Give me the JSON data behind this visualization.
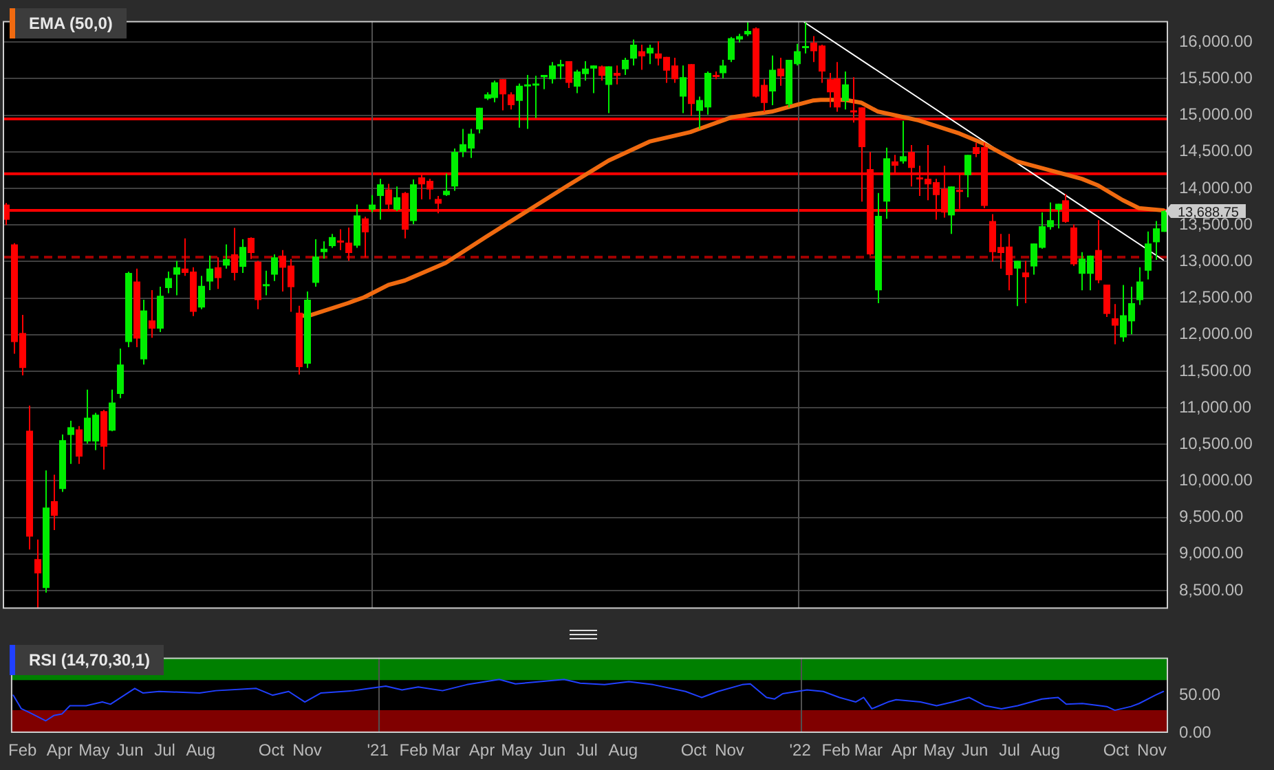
{
  "chart_data": [
    {
      "type": "candlestick",
      "series": [
        {
          "type": "candlestick",
          "x": [
            "2020-02-21",
            "2020-02-28",
            "2020-03-06",
            "2020-03-13",
            "2020-03-20",
            "2020-03-27",
            "2020-04-03",
            "2020-04-10",
            "2020-04-17",
            "2020-04-24",
            "2020-05-01",
            "2020-05-08",
            "2020-05-15",
            "2020-05-22",
            "2020-05-29",
            "2020-06-05",
            "2020-06-12",
            "2020-06-19",
            "2020-06-26",
            "2020-07-03",
            "2020-07-10",
            "2020-07-17",
            "2020-07-24",
            "2020-07-31",
            "2020-08-07",
            "2020-08-14",
            "2020-08-21",
            "2020-08-28",
            "2020-09-04",
            "2020-09-11",
            "2020-09-18",
            "2020-09-25",
            "2020-10-02",
            "2020-10-09",
            "2020-10-16",
            "2020-10-23",
            "2020-10-30",
            "2020-11-06",
            "2020-11-13",
            "2020-11-20",
            "2020-11-27",
            "2020-12-04",
            "2020-12-11",
            "2020-12-18",
            "2020-12-25",
            "2021-01-01",
            "2021-01-08",
            "2021-01-15",
            "2021-01-22",
            "2021-01-29",
            "2021-02-05",
            "2021-02-12",
            "2021-02-19",
            "2021-02-26",
            "2021-03-05",
            "2021-03-12",
            "2021-03-19",
            "2021-03-26",
            "2021-04-02",
            "2021-04-09",
            "2021-04-16",
            "2021-04-23",
            "2021-04-30",
            "2021-05-07",
            "2021-05-14",
            "2021-05-21",
            "2021-05-28",
            "2021-06-04",
            "2021-06-11",
            "2021-06-18",
            "2021-06-25",
            "2021-07-02",
            "2021-07-09",
            "2021-07-16",
            "2021-07-23",
            "2021-07-30",
            "2021-08-06",
            "2021-08-13",
            "2021-08-20",
            "2021-08-27",
            "2021-09-03",
            "2021-09-10",
            "2021-09-17",
            "2021-09-24",
            "2021-10-01",
            "2021-10-08",
            "2021-10-15",
            "2021-10-22",
            "2021-10-29",
            "2021-11-05",
            "2021-11-12",
            "2021-11-19",
            "2021-11-26",
            "2021-12-03",
            "2021-12-10",
            "2021-12-17",
            "2021-12-24",
            "2021-12-31",
            "2022-01-07",
            "2022-01-14",
            "2022-01-21",
            "2022-01-28",
            "2022-02-04",
            "2022-02-11",
            "2022-02-18",
            "2022-02-25",
            "2022-03-04",
            "2022-03-11",
            "2022-03-18",
            "2022-03-25",
            "2022-04-01",
            "2022-04-08",
            "2022-04-15",
            "2022-04-22",
            "2022-04-29",
            "2022-05-06",
            "2022-05-13",
            "2022-05-20",
            "2022-05-27",
            "2022-06-03",
            "2022-06-10",
            "2022-06-17",
            "2022-06-24",
            "2022-07-01",
            "2022-07-08",
            "2022-07-15",
            "2022-07-22",
            "2022-07-29",
            "2022-08-05",
            "2022-08-12",
            "2022-08-19",
            "2022-08-26",
            "2022-09-02",
            "2022-09-09",
            "2022-09-16",
            "2022-09-23",
            "2022-09-30",
            "2022-10-07",
            "2022-10-14",
            "2022-10-21",
            "2022-10-28",
            "2022-11-04",
            "2022-11-11"
          ],
          "ohlc": [
            [
              13778,
              13800,
              13500,
              13571
            ],
            [
              13234,
              13250,
              11739,
              11898
            ],
            [
              12022,
              12271,
              11443,
              11544
            ],
            [
              10687,
              11030,
              9062,
              9239
            ],
            [
              8931,
              9197,
              8252,
              8736
            ],
            [
              8536,
              10143,
              8471,
              9635
            ],
            [
              9723,
              10084,
              9327,
              9522
            ],
            [
              9889,
              10634,
              9848,
              10557
            ],
            [
              10628,
              10823,
              10232,
              10734
            ],
            [
              10704,
              10750,
              10232,
              10332
            ],
            [
              10539,
              11248,
              10509,
              10864
            ],
            [
              10539,
              10930,
              10421,
              10905
            ],
            [
              10953,
              10970,
              10155,
              10468
            ],
            [
              10687,
              11248,
              10680,
              11071
            ],
            [
              11189,
              11810,
              11130,
              11591
            ],
            [
              11898,
              12860,
              11827,
              12844
            ],
            [
              12726,
              12903,
              11827,
              11946
            ],
            [
              11662,
              12477,
              11591,
              12330
            ],
            [
              12194,
              12608,
              11957,
              12082
            ],
            [
              12082,
              12655,
              12034,
              12531
            ],
            [
              12637,
              12862,
              12566,
              12773
            ],
            [
              12820,
              13009,
              12537,
              12921
            ],
            [
              12903,
              13317,
              12803,
              12844
            ],
            [
              12862,
              12921,
              12253,
              12312
            ],
            [
              12371,
              12803,
              12347,
              12667
            ],
            [
              12726,
              13080,
              12608,
              12903
            ],
            [
              12921,
              13057,
              12625,
              12773
            ],
            [
              12944,
              13234,
              12903,
              13033
            ],
            [
              13098,
              13459,
              12743,
              12844
            ],
            [
              12927,
              13305,
              12844,
              13199
            ],
            [
              13323,
              13330,
              13033,
              13116
            ],
            [
              12998,
              13010,
              12347,
              12472
            ],
            [
              12667,
              12873,
              12537,
              12690
            ],
            [
              12820,
              13098,
              12732,
              13057
            ],
            [
              13080,
              13157,
              12590,
              12915
            ],
            [
              12944,
              13033,
              12312,
              12649
            ],
            [
              12300,
              12395,
              11455,
              11556
            ],
            [
              11603,
              12590,
              11544,
              12477
            ],
            [
              12708,
              13305,
              12655,
              13068
            ],
            [
              13128,
              13276,
              13039,
              13175
            ],
            [
              13210,
              13376,
              13187,
              13334
            ],
            [
              13287,
              13441,
              13157,
              13269
            ],
            [
              13258,
              13464,
              13010,
              13116
            ],
            [
              13216,
              13778,
              13187,
              13630
            ],
            [
              13589,
              13612,
              13057,
              13399
            ],
            [
              13707,
              13908,
              13672,
              13778
            ],
            [
              13896,
              14132,
              13571,
              14055
            ],
            [
              13985,
              14060,
              13710,
              13778
            ],
            [
              13707,
              14026,
              13690,
              13878
            ],
            [
              13937,
              13950,
              13317,
              13435
            ],
            [
              13553,
              14121,
              13512,
              14055
            ],
            [
              14150,
              14191,
              13849,
              14055
            ],
            [
              14103,
              14132,
              13849,
              13985
            ],
            [
              13855,
              13896,
              13660,
              13790
            ],
            [
              13908,
              14203,
              13896,
              13967
            ],
            [
              14026,
              14546,
              13967,
              14499
            ],
            [
              14499,
              14812,
              14428,
              14605
            ],
            [
              14546,
              14812,
              14416,
              14747
            ],
            [
              14806,
              15101,
              14753,
              15101
            ],
            [
              15226,
              15314,
              15208,
              15285
            ],
            [
              15237,
              15474,
              15178,
              15450
            ],
            [
              15492,
              15492,
              15066,
              15285
            ],
            [
              15285,
              15314,
              15078,
              15137
            ],
            [
              15196,
              15433,
              14830,
              15403
            ],
            [
              15403,
              15551,
              14812,
              15421
            ],
            [
              15421,
              15539,
              14960,
              15433
            ],
            [
              15521,
              15551,
              15356,
              15551
            ],
            [
              15492,
              15728,
              15433,
              15681
            ],
            [
              15669,
              15758,
              15492,
              15698
            ],
            [
              15740,
              15740,
              15373,
              15444
            ],
            [
              15391,
              15622,
              15302,
              15598
            ],
            [
              15563,
              15740,
              15474,
              15639
            ],
            [
              15639,
              15681,
              15302,
              15681
            ],
            [
              15669,
              15681,
              15474,
              15539
            ],
            [
              15415,
              15669,
              15030,
              15669
            ],
            [
              15580,
              15681,
              15421,
              15539
            ],
            [
              15628,
              15787,
              15551,
              15758
            ],
            [
              15775,
              16035,
              15681,
              15964
            ],
            [
              15876,
              15964,
              15622,
              15805
            ],
            [
              15846,
              15964,
              15699,
              15923
            ],
            [
              15846,
              16012,
              15681,
              15775
            ],
            [
              15799,
              15799,
              15444,
              15610
            ],
            [
              15681,
              15787,
              15444,
              15492
            ],
            [
              15255,
              15681,
              15030,
              15521
            ],
            [
              15698,
              15698,
              14989,
              15155
            ],
            [
              15060,
              15255,
              14812,
              15208
            ],
            [
              15107,
              15598,
              15007,
              15580
            ],
            [
              15551,
              15598,
              15492,
              15533
            ],
            [
              15574,
              15758,
              15503,
              15681
            ],
            [
              15758,
              16071,
              15728,
              16053
            ],
            [
              16035,
              16112,
              15994,
              16083
            ],
            [
              16106,
              16272,
              16083,
              16153
            ],
            [
              16189,
              16201,
              15243,
              15255
            ],
            [
              15415,
              15492,
              15048,
              15167
            ],
            [
              15326,
              15817,
              15137,
              15622
            ],
            [
              15639,
              15787,
              15403,
              15533
            ],
            [
              15149,
              15758,
              15107,
              15758
            ],
            [
              15698,
              15976,
              15681,
              15876
            ],
            [
              15929,
              16270,
              15846,
              15947
            ],
            [
              15994,
              16083,
              15728,
              15876
            ],
            [
              15952,
              15964,
              15444,
              15598
            ],
            [
              15492,
              15580,
              15107,
              15314
            ],
            [
              15503,
              15728,
              15048,
              15107
            ],
            [
              15196,
              15598,
              15078,
              15421
            ],
            [
              15066,
              15521,
              14901,
              15048
            ],
            [
              15107,
              15107,
              13819,
              14564
            ],
            [
              14262,
              14499,
              13080,
              13098
            ],
            [
              12607,
              13937,
              12430,
              13624
            ],
            [
              13819,
              14558,
              13583,
              14410
            ],
            [
              14369,
              14457,
              14203,
              14310
            ],
            [
              14369,
              14924,
              14339,
              14440
            ],
            [
              14499,
              14593,
              14026,
              14280
            ],
            [
              14150,
              14310,
              13896,
              14132
            ],
            [
              14132,
              14593,
              13837,
              14055
            ],
            [
              14085,
              14132,
              13571,
              13908
            ],
            [
              13996,
              14310,
              13600,
              13671
            ],
            [
              13630,
              14026,
              13376,
              14026
            ],
            [
              13979,
              14191,
              13719,
              13967
            ],
            [
              14180,
              14457,
              13878,
              14457
            ],
            [
              14564,
              14623,
              14428,
              14469
            ],
            [
              14564,
              14623,
              13730,
              13760
            ],
            [
              13553,
              13648,
              12998,
              13128
            ],
            [
              13198,
              13376,
              12903,
              13116
            ],
            [
              13204,
              13376,
              12607,
              12814
            ],
            [
              12903,
              13010,
              12389,
              13010
            ],
            [
              12850,
              13010,
              12430,
              12785
            ],
            [
              12932,
              13246,
              12820,
              13246
            ],
            [
              13187,
              13671,
              13175,
              13482
            ],
            [
              13470,
              13807,
              13435,
              13565
            ],
            [
              13707,
              13789,
              13453,
              13789
            ],
            [
              13837,
              13925,
              13530,
              13541
            ],
            [
              13465,
              13506,
              12939,
              12962
            ],
            [
              12832,
              13128,
              12607,
              13039
            ],
            [
              12832,
              13080,
              12607,
              13080
            ],
            [
              13157,
              13565,
              12702,
              12743
            ],
            [
              12684,
              12684,
              12241,
              12283
            ],
            [
              12223,
              12418,
              11869,
              12123
            ],
            [
              11963,
              12678,
              11904,
              12265
            ],
            [
              12182,
              12655,
              12005,
              12430
            ],
            [
              12472,
              12921,
              12407,
              12726
            ],
            [
              12874,
              13411,
              12755,
              13246
            ],
            [
              13263,
              13553,
              13021,
              13453
            ],
            [
              13405,
              13700,
              13405,
              13688.75
            ]
          ],
          "colors": [
            "#ff0000",
            "#ff0000",
            "#ff0000",
            "#ff0000",
            "#ff0000",
            "#00ee00",
            "#ff0000",
            "#00ee00",
            "#00ee00",
            "#ff0000",
            "#00ee00",
            "#00ee00",
            "#ff0000",
            "#00ee00",
            "#00ee00",
            "#00ee00",
            "#ff0000",
            "#00ee00",
            "#ff0000",
            "#00ee00",
            "#00ee00",
            "#00ee00",
            "#ff0000",
            "#ff0000",
            "#00ee00",
            "#00ee00",
            "#ff0000",
            "#00ee00",
            "#ff0000",
            "#00ee00",
            "#ff0000",
            "#ff0000",
            "#00ee00",
            "#00ee00",
            "#ff0000",
            "#ff0000",
            "#ff0000",
            "#00ee00",
            "#00ee00",
            "#00ee00",
            "#00ee00",
            "#ff0000",
            "#ff0000",
            "#00ee00",
            "#ff0000",
            "#00ee00",
            "#00ee00",
            "#ff0000",
            "#00ee00",
            "#ff0000",
            "#00ee00",
            "#ff0000",
            "#ff0000",
            "#ff0000",
            "#00ee00",
            "#00ee00",
            "#00ee00",
            "#00ee00",
            "#00ee00",
            "#00ee00",
            "#00ee00",
            "#ff0000",
            "#ff0000",
            "#00ee00",
            "#00ee00",
            "#00ee00",
            "#00ee00",
            "#00ee00",
            "#00ee00",
            "#ff0000",
            "#00ee00",
            "#00ee00",
            "#00ee00",
            "#ff0000",
            "#00ee00",
            "#ff0000",
            "#00ee00",
            "#00ee00",
            "#ff0000",
            "#00ee00",
            "#ff0000",
            "#ff0000",
            "#ff0000",
            "#00ee00",
            "#ff0000",
            "#00ee00",
            "#00ee00",
            "#ff0000",
            "#00ee00",
            "#00ee00",
            "#00ee00",
            "#00ee00",
            "#ff0000",
            "#ff0000",
            "#00ee00",
            "#ff0000",
            "#00ee00",
            "#00ee00",
            "#00ee00",
            "#ff0000",
            "#ff0000",
            "#ff0000",
            "#ff0000",
            "#00ee00",
            "#ff0000",
            "#ff0000",
            "#ff0000",
            "#00ee00",
            "#00ee00",
            "#ff0000",
            "#00ee00",
            "#ff0000",
            "#ff0000",
            "#ff0000",
            "#ff0000",
            "#ff0000",
            "#00ee00",
            "#ff0000",
            "#00ee00",
            "#ff0000",
            "#ff0000",
            "#ff0000",
            "#ff0000",
            "#ff0000",
            "#00ee00",
            "#ff0000",
            "#00ee00",
            "#00ee00",
            "#00ee00",
            "#00ee00",
            "#ff0000",
            "#ff0000",
            "#00ee00",
            "#00ee00",
            "#ff0000",
            "#ff0000",
            "#ff0000",
            "#00ee00",
            "#00ee00",
            "#00ee00",
            "#00ee00",
            "#00ee00",
            "#00ee00"
          ]
        },
        {
          "type": "line",
          "name": "EMA (50,0)",
          "color": "#f06a10",
          "x": [
            "2020-10-30",
            "2020-11-06",
            "2020-12-11",
            "2020-12-25",
            "2021-01-15",
            "2021-01-29",
            "2021-03-05",
            "2021-04-09",
            "2021-05-14",
            "2021-06-18",
            "2021-07-23",
            "2021-08-27",
            "2021-10-01",
            "2021-11-05",
            "2021-12-10",
            "2021-12-31",
            "2022-01-14",
            "2022-01-21",
            "2022-02-11",
            "2022-02-25",
            "2022-03-11",
            "2022-04-15",
            "2022-05-20",
            "2022-06-10",
            "2022-07-08",
            "2022-08-05",
            "2022-09-02",
            "2022-09-16",
            "2022-10-07",
            "2022-10-21",
            "2022-11-11"
          ],
          "values": [
            12270,
            12250,
            12430,
            12510,
            12680,
            12740,
            12980,
            13340,
            13690,
            14040,
            14380,
            14640,
            14770,
            14970,
            15050,
            15140,
            15200,
            15210,
            15210,
            15170,
            15050,
            14930,
            14750,
            14610,
            14370,
            14250,
            14130,
            14040,
            13840,
            13730,
            13700
          ]
        },
        {
          "type": "line",
          "color": "#ffffff",
          "x": [
            "2022-01-07",
            "2022-11-11"
          ],
          "values": [
            16270,
            13020
          ]
        }
      ],
      "xlim": [
        "2020-02-19",
        "2022-11-15"
      ],
      "ylim": [
        8250,
        16290
      ],
      "yticks": [
        {
          "value": 8500,
          "label": "8,500.00"
        },
        {
          "value": 9000,
          "label": "9,000.00"
        },
        {
          "value": 9500,
          "label": "9,500.00"
        },
        {
          "value": 10000,
          "label": "10,000.00"
        },
        {
          "value": 10500,
          "label": "10,500.00"
        },
        {
          "value": 11000,
          "label": "11,000.00"
        },
        {
          "value": 11500,
          "label": "11,500.00"
        },
        {
          "value": 12000,
          "label": "12,000.00"
        },
        {
          "value": 12500,
          "label": "12,500.00"
        },
        {
          "value": 13000,
          "label": "13,000.00"
        },
        {
          "value": 13500,
          "label": "13,500.00"
        },
        {
          "value": 14000,
          "label": "14,000.00"
        },
        {
          "value": 14500,
          "label": "14,500.00"
        },
        {
          "value": 15000,
          "label": "15,000.00"
        },
        {
          "value": 15500,
          "label": "15,500.00"
        },
        {
          "value": 16000,
          "label": "16,000.00"
        }
      ],
      "tick_labels": "y",
      "grid": "y",
      "legend": "top left",
      "ref_lines": [
        {
          "axis": "y",
          "value": 14950,
          "color": "#ff0000"
        },
        {
          "axis": "y",
          "value": 14200,
          "color": "#ff0000"
        },
        {
          "axis": "y",
          "value": 13700,
          "color": "#ff0000"
        },
        {
          "axis": "y",
          "value": 13060,
          "color": "#a00000",
          "line_style": "dashed"
        },
        {
          "axis": "x",
          "value": "2021-01-01",
          "color": "#505050"
        },
        {
          "axis": "x",
          "value": "2022-01-01",
          "color": "#505050"
        }
      ],
      "annotations": [
        {
          "text": "13,688.75",
          "x": "2022-11-11",
          "y": 13688.75
        }
      ]
    },
    {
      "type": "line",
      "series": [
        {
          "name": "RSI (14,70,30,1)",
          "color": "#2040ff",
          "x": [
            "2020-02-21",
            "2020-02-28",
            "2020-03-06",
            "2020-03-20",
            "2020-03-27",
            "2020-04-03",
            "2020-04-10",
            "2020-04-24",
            "2020-05-08",
            "2020-05-15",
            "2020-06-05",
            "2020-06-12",
            "2020-06-26",
            "2020-07-31",
            "2020-08-14",
            "2020-09-18",
            "2020-10-02",
            "2020-10-16",
            "2020-10-30",
            "2020-11-13",
            "2020-12-11",
            "2020-12-25",
            "2021-01-08",
            "2021-01-22",
            "2021-02-05",
            "2021-02-26",
            "2021-03-19",
            "2021-04-16",
            "2021-04-30",
            "2021-05-21",
            "2021-06-11",
            "2021-06-25",
            "2021-07-16",
            "2021-08-06",
            "2021-08-27",
            "2021-09-24",
            "2021-10-08",
            "2021-10-22",
            "2021-11-12",
            "2021-11-19",
            "2021-12-03",
            "2021-12-10",
            "2021-12-17",
            "2022-01-07",
            "2022-01-21",
            "2022-02-04",
            "2022-02-18",
            "2022-02-25",
            "2022-03-04",
            "2022-03-18",
            "2022-03-25",
            "2022-04-15",
            "2022-04-29",
            "2022-05-13",
            "2022-05-27",
            "2022-06-10",
            "2022-06-24",
            "2022-07-08",
            "2022-07-29",
            "2022-08-12",
            "2022-08-19",
            "2022-09-02",
            "2022-09-23",
            "2022-09-30",
            "2022-10-14",
            "2022-10-21",
            "2022-11-04",
            "2022-11-11"
          ],
          "values": [
            50,
            32,
            27,
            16,
            23,
            25,
            36,
            36,
            41,
            38,
            59,
            53,
            55,
            53,
            56,
            59,
            50,
            55,
            41,
            53,
            56,
            59,
            62,
            57,
            61,
            56,
            64,
            71,
            65,
            68,
            71,
            66,
            64,
            68,
            64,
            55,
            47,
            55,
            64,
            65,
            47,
            45,
            52,
            57,
            55,
            47,
            41,
            47,
            32,
            41,
            44,
            41,
            36,
            41,
            47,
            36,
            32,
            36,
            45,
            47,
            38,
            39,
            35,
            30,
            35,
            39,
            50,
            55
          ]
        }
      ],
      "xlim": [
        "2020-02-19",
        "2022-11-15"
      ],
      "xticks": [
        {
          "value": "2020-02-29",
          "label": "Feb"
        },
        {
          "value": "2020-04-01",
          "label": "Apr"
        },
        {
          "value": "2020-05-01",
          "label": "May"
        },
        {
          "value": "2020-06-01",
          "label": "Jun"
        },
        {
          "value": "2020-07-01",
          "label": "Jul"
        },
        {
          "value": "2020-08-01",
          "label": "Aug"
        },
        {
          "value": "2020-10-01",
          "label": "Oct"
        },
        {
          "value": "2020-11-01",
          "label": "Nov"
        },
        {
          "value": "2021-01-01",
          "label": "'21"
        },
        {
          "value": "2021-02-01",
          "label": "Feb"
        },
        {
          "value": "2021-03-01",
          "label": "Mar"
        },
        {
          "value": "2021-04-01",
          "label": "Apr"
        },
        {
          "value": "2021-05-01",
          "label": "May"
        },
        {
          "value": "2021-06-01",
          "label": "Jun"
        },
        {
          "value": "2021-07-01",
          "label": "Jul"
        },
        {
          "value": "2021-08-01",
          "label": "Aug"
        },
        {
          "value": "2021-10-01",
          "label": "Oct"
        },
        {
          "value": "2021-11-01",
          "label": "Nov"
        },
        {
          "value": "2022-01-01",
          "label": "'22"
        },
        {
          "value": "2022-02-01",
          "label": "Feb"
        },
        {
          "value": "2022-03-01",
          "label": "Mar"
        },
        {
          "value": "2022-04-01",
          "label": "Apr"
        },
        {
          "value": "2022-05-01",
          "label": "May"
        },
        {
          "value": "2022-06-01",
          "label": "Jun"
        },
        {
          "value": "2022-07-01",
          "label": "Jul"
        },
        {
          "value": "2022-08-01",
          "label": "Aug"
        },
        {
          "value": "2022-10-01",
          "label": "Oct"
        },
        {
          "value": "2022-11-01",
          "label": "Nov"
        }
      ],
      "ylim": [
        0,
        100
      ],
      "yticks": [
        {
          "value": 0,
          "label": "0.00"
        },
        {
          "value": 50,
          "label": "50.00"
        }
      ],
      "legend": "top left",
      "bands": [
        {
          "axis": "y",
          "from": 70,
          "to": 100,
          "color": "#008000"
        },
        {
          "axis": "y",
          "from": 0,
          "to": 30,
          "color": "#800000"
        }
      ],
      "ref_lines": [
        {
          "axis": "x",
          "value": "2021-01-01",
          "color": "#505050"
        },
        {
          "axis": "x",
          "value": "2022-01-01",
          "color": "#505050"
        }
      ]
    }
  ]
}
